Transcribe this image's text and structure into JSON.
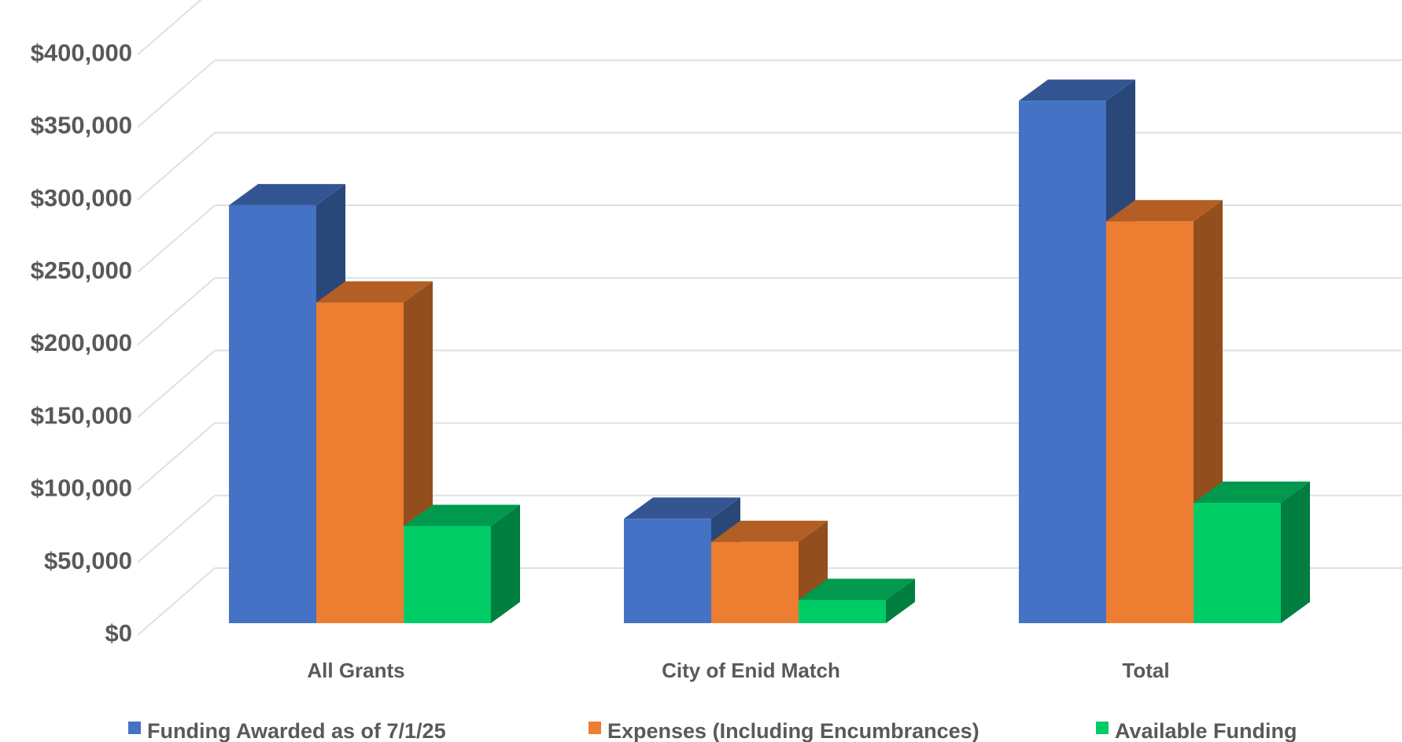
{
  "chart_data": {
    "type": "bar",
    "style": "3d-clustered-column",
    "categories": [
      "All Grants",
      "City of Enid Match",
      "Total"
    ],
    "series": [
      {
        "name": "Funding Awarded as of 7/1/25",
        "color": "#4472C4",
        "values": [
          288000,
          72000,
          360000
        ]
      },
      {
        "name": "Expenses (Including Encumbrances)",
        "color": "#ED7D31",
        "values": [
          221000,
          56000,
          277000
        ]
      },
      {
        "name": "Available Funding",
        "color": "#00CC66",
        "values": [
          67000,
          16000,
          83000
        ]
      }
    ],
    "y_ticks": [
      "$0",
      "$50,000",
      "$100,000",
      "$150,000",
      "$200,000",
      "$250,000",
      "$300,000",
      "$350,000",
      "$400,000"
    ],
    "ylim": [
      0,
      400000
    ],
    "grid": true,
    "legend": "bottom"
  }
}
